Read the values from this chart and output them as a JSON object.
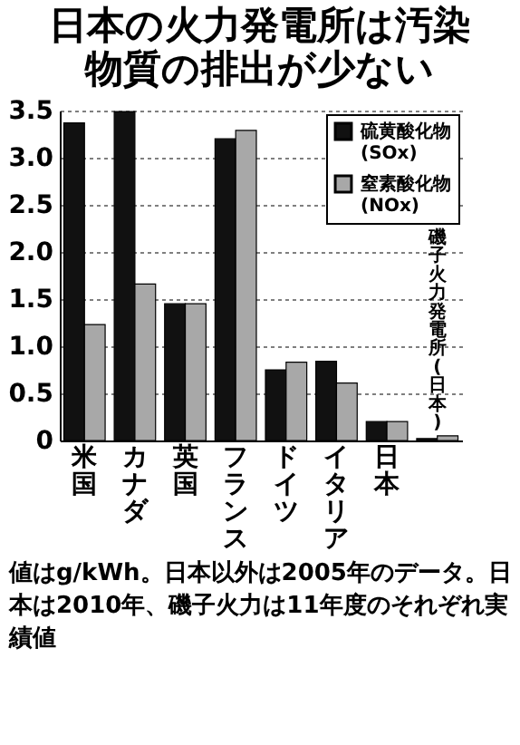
{
  "chart_data": {
    "type": "bar",
    "title": "日本の火力発電所は汚染物質の排出が少ない",
    "categories": [
      "米国",
      "カナダ",
      "英国",
      "フランス",
      "ドイツ",
      "イタリア",
      "日本",
      "磯子火力発電所(日本)"
    ],
    "series": [
      {
        "name": "硫黄酸化物(SOx)",
        "color": "#111111",
        "values": [
          3.37,
          3.49,
          1.45,
          3.2,
          0.75,
          0.84,
          0.2,
          0.02
        ]
      },
      {
        "name": "窒素酸化物(NOx)",
        "color": "#a8a8a8",
        "values": [
          1.23,
          1.66,
          1.45,
          3.29,
          0.83,
          0.61,
          0.2,
          0.05
        ]
      }
    ],
    "ylim": [
      0,
      3.5
    ],
    "yticks": [
      {
        "value": 0,
        "label": "0"
      },
      0.5,
      {
        "value": 1,
        "label": "1.0"
      },
      1.5,
      {
        "value": 2,
        "label": "2.0"
      },
      2.5,
      {
        "value": 3,
        "label": "3.0"
      },
      3.5
    ],
    "grid": "y",
    "legend": "top right",
    "annotations": [
      "値はg/kWh。日本以外は2005年のデータ。日本は2010年、磯子火力は11年度のそれぞれ実績値"
    ]
  }
}
